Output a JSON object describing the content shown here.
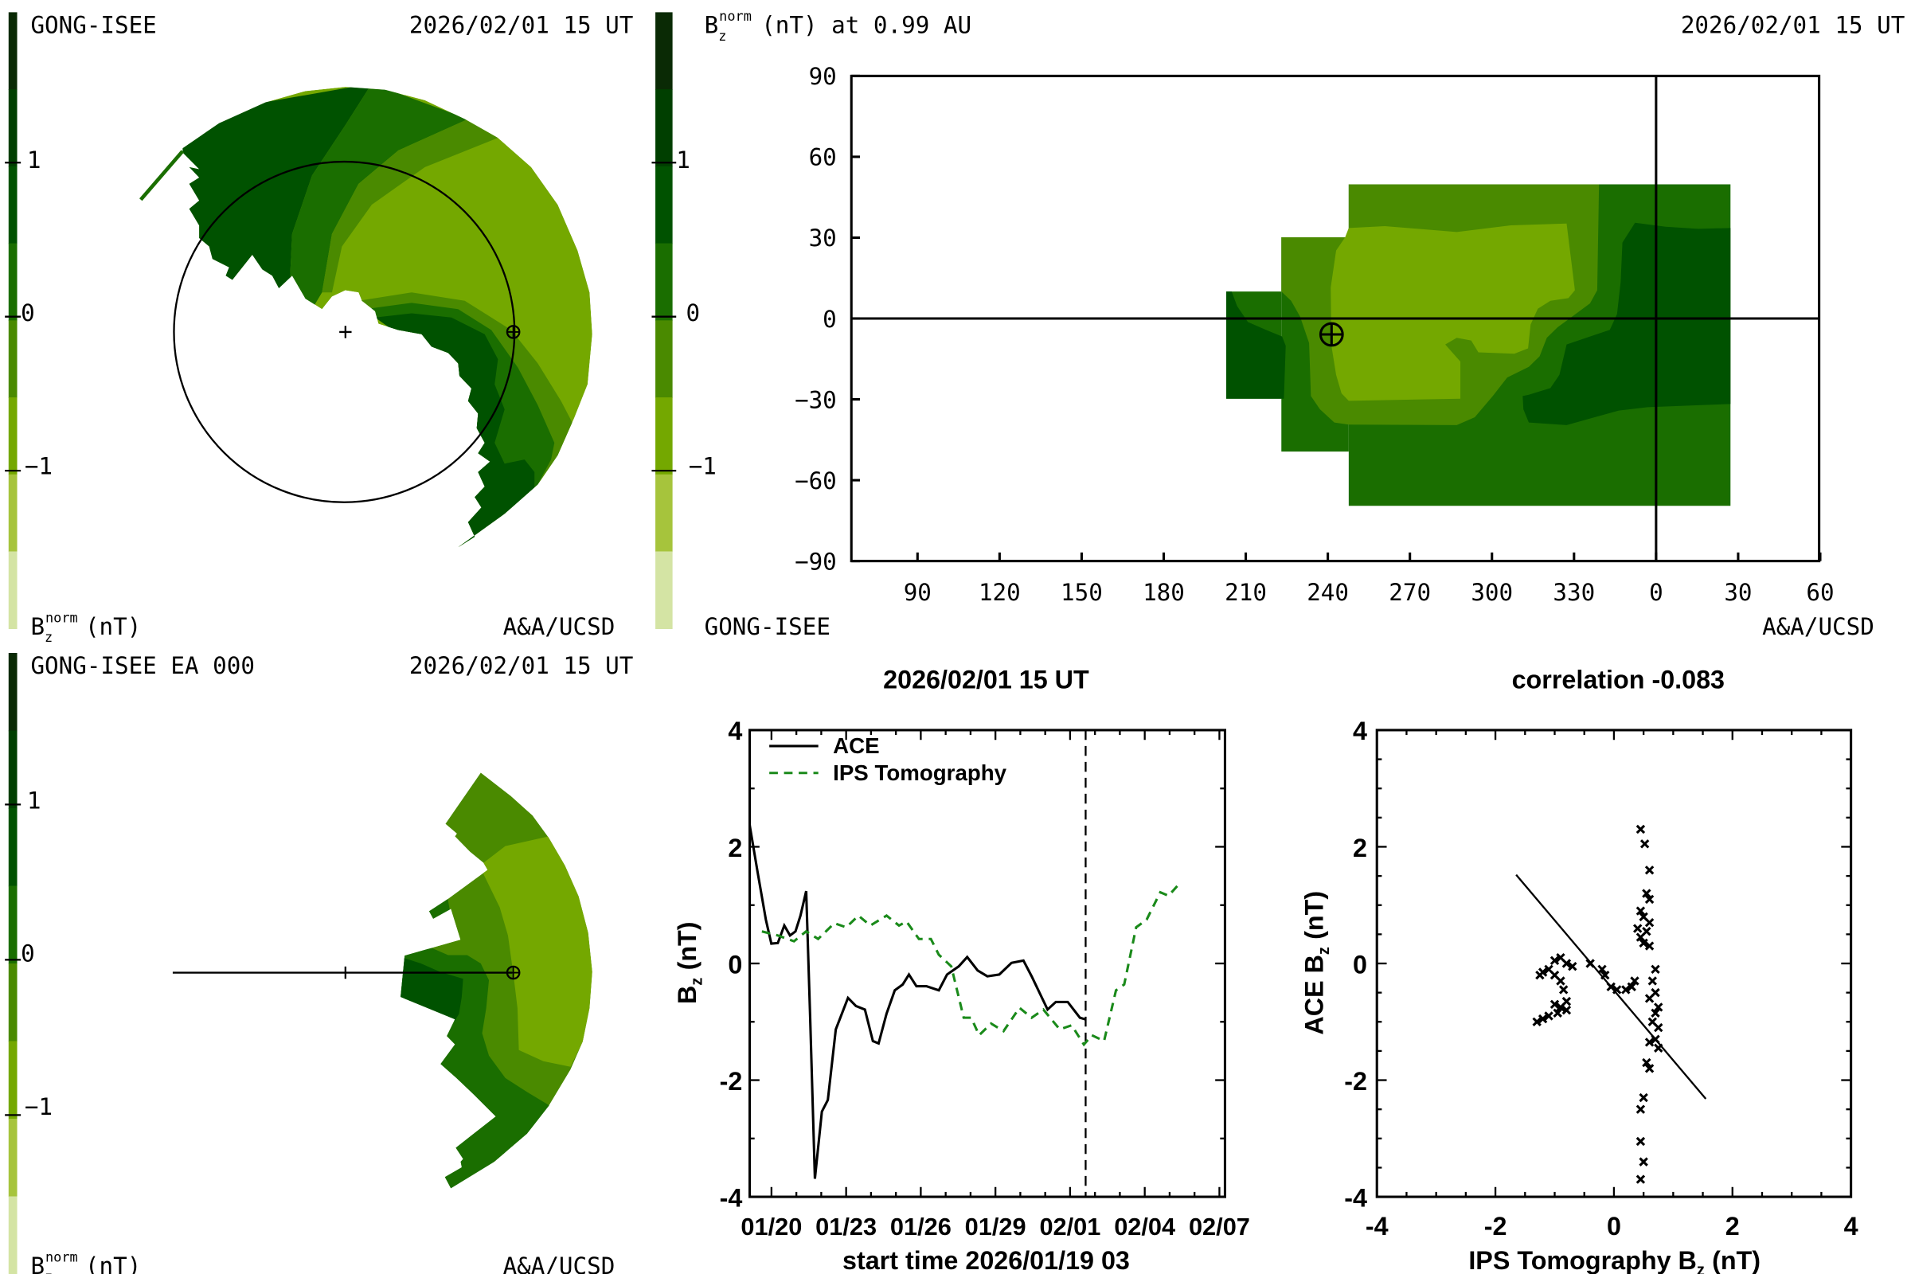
{
  "panel_top_left": {
    "source": "GONG-ISEE",
    "datetime": "2026/02/01 15 UT",
    "credit": "A&A/UCSD",
    "bar_label": {
      "base": "B",
      "sub": "z",
      "sup": "norm",
      "unit": "(nT)"
    },
    "bar_ticks": [
      "1",
      "0",
      "−1"
    ]
  },
  "panel_top_right": {
    "title": {
      "base": "B",
      "sub": "z",
      "sup": "norm",
      "rest": "(nT) at 0.99 AU"
    },
    "datetime": "2026/02/01 15 UT",
    "source": "GONG-ISEE",
    "credit": "A&A/UCSD",
    "bar_ticks": [
      "1",
      "0",
      "−1"
    ],
    "x_ticks": [
      {
        "label": "90",
        "lon": 90
      },
      {
        "label": "120",
        "lon": 120
      },
      {
        "label": "150",
        "lon": 150
      },
      {
        "label": "180",
        "lon": 180
      },
      {
        "label": "210",
        "lon": 210
      },
      {
        "label": "240",
        "lon": 240
      },
      {
        "label": "270",
        "lon": 270
      },
      {
        "label": "300",
        "lon": 300
      },
      {
        "label": "330",
        "lon": 330
      },
      {
        "label": "0",
        "lon": 360
      },
      {
        "label": "30",
        "lon": 390
      },
      {
        "label": "60",
        "lon": 420
      }
    ],
    "y_ticks": [
      {
        "label": "90",
        "lat": 90
      },
      {
        "label": "60",
        "lat": 60
      },
      {
        "label": "30",
        "lat": 30
      },
      {
        "label": "0",
        "lat": 0
      },
      {
        "label": "−30",
        "lat": -30
      },
      {
        "label": "−60",
        "lat": -60
      },
      {
        "label": "−90",
        "lat": -90
      }
    ]
  },
  "panel_bottom_left": {
    "source": "GONG-ISEE EA 000",
    "datetime": "2026/02/01 15 UT",
    "credit": "A&A/UCSD",
    "bar_label": {
      "base": "B",
      "sub": "z",
      "sup": "norm",
      "unit": "(nT)"
    },
    "bar_ticks": [
      "1",
      "0",
      "−1"
    ]
  },
  "colors": {
    "colorbar_levels": [
      "#0a2a05",
      "#003f00",
      "#005200",
      "#1a6e00",
      "#4a8a00",
      "#74a800",
      "#a6c43c",
      "#d4e4a4"
    ],
    "ace": "#000000",
    "ips": "#1a8a1a"
  },
  "chart_data": [
    {
      "type": "line",
      "title": "2026/02/01 15 UT",
      "xlabel": "start time 2026/01/19 03",
      "ylabel": {
        "base": "B",
        "sub": "z",
        "unit": "(nT)"
      },
      "x_unit": "days since start",
      "xlim": [
        0,
        19.1
      ],
      "ylim": [
        -4,
        4
      ],
      "y_ticks": [
        "4",
        "2",
        "0",
        "-2",
        "-4"
      ],
      "y_tick_values": [
        4,
        2,
        0,
        -2,
        -4
      ],
      "x_ticks": [
        {
          "label": "01/20",
          "day": 0.875
        },
        {
          "label": "01/23",
          "day": 3.875
        },
        {
          "label": "01/26",
          "day": 6.875
        },
        {
          "label": "01/29",
          "day": 9.875
        },
        {
          "label": "02/01",
          "day": 12.875
        },
        {
          "label": "02/04",
          "day": 15.875
        },
        {
          "label": "02/07",
          "day": 18.875
        }
      ],
      "now_marker_day": 13.5,
      "legend": "top-left",
      "series": [
        {
          "name": "ACE",
          "style": "solid",
          "x": [
            0,
            0.32,
            0.65,
            0.87,
            1.13,
            1.39,
            1.62,
            1.84,
            2.04,
            2.27,
            2.43,
            2.62,
            2.9,
            3.14,
            3.46,
            3.95,
            4.27,
            4.63,
            4.95,
            5.18,
            5.5,
            5.83,
            6.15,
            6.4,
            6.7,
            7.1,
            7.6,
            7.93,
            8.4,
            8.74,
            9.16,
            9.55,
            10.03,
            10.52,
            11.0,
            11.33,
            11.97,
            12.3,
            12.78,
            13.27,
            13.5
          ],
          "y": [
            2.37,
            1.56,
            0.75,
            0.34,
            0.35,
            0.65,
            0.48,
            0.55,
            0.82,
            1.24,
            -0.93,
            -3.69,
            -2.54,
            -2.34,
            -1.13,
            -0.59,
            -0.73,
            -0.79,
            -1.33,
            -1.37,
            -0.86,
            -0.46,
            -0.36,
            -0.19,
            -0.39,
            -0.39,
            -0.46,
            -0.19,
            -0.05,
            0.11,
            -0.12,
            -0.22,
            -0.19,
            0.01,
            0.05,
            -0.22,
            -0.79,
            -0.66,
            -0.66,
            -0.93,
            -0.96
          ]
        },
        {
          "name": "IPS Tomography",
          "style": "dashed",
          "x": [
            0.49,
            1.13,
            1.78,
            2.27,
            2.75,
            3.4,
            3.88,
            4.37,
            4.85,
            5.5,
            6.0,
            6.3,
            6.8,
            7.28,
            7.6,
            8.1,
            8.6,
            8.9,
            9.22,
            9.7,
            10.2,
            10.84,
            11.33,
            11.8,
            12.46,
            12.94,
            13.43,
            13.75,
            14.24,
            14.72,
            15.05,
            15.53,
            15.95,
            16.5,
            16.83,
            17.25
          ],
          "y": [
            0.55,
            0.48,
            0.38,
            0.55,
            0.42,
            0.69,
            0.62,
            0.82,
            0.65,
            0.82,
            0.65,
            0.72,
            0.42,
            0.42,
            0.15,
            -0.05,
            -0.93,
            -0.93,
            -1.23,
            -1.03,
            -1.16,
            -0.76,
            -0.93,
            -0.79,
            -1.13,
            -1.06,
            -1.39,
            -1.23,
            -1.33,
            -0.46,
            -0.36,
            0.62,
            0.75,
            1.22,
            1.16,
            1.36
          ]
        }
      ]
    },
    {
      "type": "scatter",
      "title": "correlation -0.083",
      "xlabel": {
        "pre": "IPS Tomography B",
        "sub": "z",
        "unit": "(nT)"
      },
      "ylabel": {
        "pre": "ACE B",
        "sub": "z",
        "unit": "(nT)"
      },
      "xlim": [
        -4,
        4
      ],
      "ylim": [
        -4,
        4
      ],
      "x_ticks": [
        "-4",
        "-2",
        "0",
        "2",
        "4"
      ],
      "y_ticks": [
        "4",
        "2",
        "0",
        "-2",
        "-4"
      ],
      "tick_values": [
        -4,
        -2,
        0,
        2,
        4
      ],
      "fit_line": {
        "x": [
          -1.65,
          1.55
        ],
        "y": [
          1.52,
          -2.32
        ]
      },
      "points": {
        "x": [
          0.45,
          0.52,
          0.6,
          0.55,
          0.6,
          0.45,
          0.5,
          0.6,
          0.4,
          0.55,
          0.45,
          0.5,
          0.6,
          0.7,
          0.65,
          0.7,
          0.6,
          0.75,
          0.7,
          0.65,
          0.75,
          0.7,
          0.6,
          0.75,
          0.55,
          0.6,
          0.5,
          0.45,
          0.45,
          0.5,
          0.45,
          0.35,
          0.3,
          0.2,
          0.05,
          -0.05,
          -0.15,
          -0.2,
          -0.4,
          -0.7,
          -0.8,
          -0.9,
          -1.0,
          -1.1,
          -1.2,
          -1.25,
          -1.0,
          -0.9,
          -0.85,
          -0.8,
          -0.9,
          -1.0,
          -0.95,
          -1.1,
          -1.2,
          -1.3,
          -0.8
        ],
        "y": [
          2.3,
          2.05,
          1.6,
          1.2,
          1.1,
          0.9,
          0.8,
          0.7,
          0.6,
          0.55,
          0.45,
          0.35,
          0.3,
          -0.1,
          -0.3,
          -0.5,
          -0.6,
          -0.75,
          -0.85,
          -1.0,
          -1.1,
          -1.3,
          -1.35,
          -1.45,
          -1.7,
          -1.8,
          -2.3,
          -2.5,
          -3.05,
          -3.4,
          -3.7,
          -0.3,
          -0.4,
          -0.45,
          -0.45,
          -0.4,
          -0.2,
          -0.1,
          0.0,
          -0.05,
          0.0,
          0.1,
          0.05,
          -0.1,
          -0.15,
          -0.2,
          -0.2,
          -0.3,
          -0.45,
          -0.65,
          -0.75,
          -0.7,
          -0.85,
          -0.9,
          -0.95,
          -1.0,
          -0.8
        ]
      }
    }
  ]
}
